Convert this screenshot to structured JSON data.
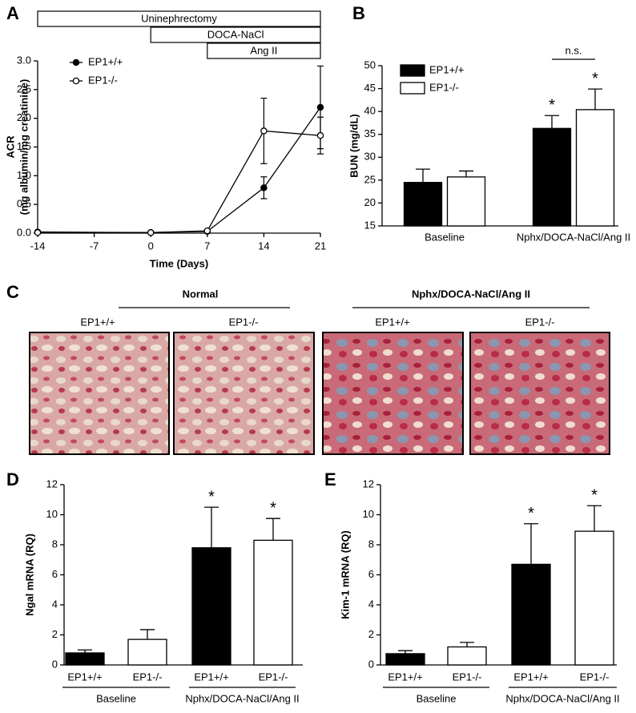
{
  "chart_data": [
    {
      "panel": "A",
      "type": "line",
      "x": [
        -14,
        0,
        7,
        14,
        21
      ],
      "series": [
        {
          "name": "EP1+/+",
          "color": "#000000",
          "marker": "filled",
          "values": [
            0.02,
            0.01,
            0.03,
            0.79,
            2.19
          ],
          "errors": [
            0.01,
            0.01,
            0.01,
            0.19,
            0.72
          ]
        },
        {
          "name": "EP1-/-",
          "color": "#000000",
          "marker": "open",
          "values": [
            0.01,
            0.01,
            0.04,
            1.78,
            1.7
          ],
          "errors": [
            0.01,
            0.01,
            0.01,
            0.57,
            0.32
          ]
        }
      ],
      "xlim": [
        -14,
        21
      ],
      "xticks": [
        -14,
        -7,
        0,
        7,
        14,
        21
      ],
      "ylim": [
        0,
        3
      ],
      "yticks": [
        {
          "value": 0,
          "label": "0.0"
        },
        {
          "value": 0.5,
          "label": "0.5"
        },
        {
          "value": 1,
          "label": "1.0"
        },
        {
          "value": 1.5,
          "label": "1.5"
        },
        {
          "value": 2,
          "label": "2.0"
        },
        {
          "value": 2.5,
          "label": "2.5"
        },
        {
          "value": 3,
          "label": "3.0"
        }
      ],
      "xlabel": "Time (Days)",
      "ylabel": [
        "ACR",
        "(mg albumin/mg creatinine)"
      ],
      "periods": [
        {
          "label": "Uninephrectomy",
          "start": -14,
          "end": 21
        },
        {
          "label": "DOCA-NaCl",
          "start": 0,
          "end": 21
        },
        {
          "label": "Ang II",
          "start": 7,
          "end": 21
        }
      ],
      "legend": "upper left"
    },
    {
      "panel": "B",
      "type": "bar",
      "categories": [
        "Baseline",
        "Nphx/DOCA-NaCl/Ang II"
      ],
      "series": [
        {
          "name": "EP1+/+",
          "color": "#000000",
          "values": [
            24.5,
            36.3
          ],
          "errors": [
            2.9,
            2.8
          ],
          "labels": [
            null,
            "*"
          ]
        },
        {
          "name": "EP1-/-",
          "color": "#ffffff",
          "values": [
            25.7,
            40.4
          ],
          "errors": [
            1.3,
            4.5
          ],
          "labels": [
            null,
            "*"
          ]
        }
      ],
      "ylim": [
        15,
        50
      ],
      "yticks": [
        15,
        20,
        25,
        30,
        35,
        40,
        45,
        50
      ],
      "ylabel": "BUN (mg/dL)",
      "bracket_label": "n.s.",
      "legend": "upper left"
    },
    {
      "panel": "D",
      "type": "bar",
      "categories": [
        "EP1+/+",
        "EP1-/-",
        "EP1+/+",
        "EP1-/-"
      ],
      "values": [
        0.8,
        1.7,
        7.8,
        8.3
      ],
      "errors": [
        0.2,
        0.65,
        2.7,
        1.45
      ],
      "labels": [
        null,
        null,
        "*",
        "*"
      ],
      "colors": [
        "#000000",
        "#ffffff",
        "#000000",
        "#ffffff"
      ],
      "groups": [
        "Baseline",
        "Nphx/DOCA-NaCl/Ang II"
      ],
      "ylim": [
        0,
        12
      ],
      "yticks": [
        0,
        2,
        4,
        6,
        8,
        10,
        12
      ],
      "ylabel": "Ngal mRNA (RQ)"
    },
    {
      "panel": "E",
      "type": "bar",
      "categories": [
        "EP1+/+",
        "EP1-/-",
        "EP1+/+",
        "EP1-/-"
      ],
      "values": [
        0.75,
        1.2,
        6.7,
        8.9
      ],
      "errors": [
        0.2,
        0.3,
        2.7,
        1.7
      ],
      "labels": [
        null,
        null,
        "*",
        "*"
      ],
      "colors": [
        "#000000",
        "#ffffff",
        "#000000",
        "#ffffff"
      ],
      "groups": [
        "Baseline",
        "Nphx/DOCA-NaCl/Ang II"
      ],
      "ylim": [
        0,
        12
      ],
      "yticks": [
        0,
        2,
        4,
        6,
        8,
        10,
        12
      ],
      "ylabel": "Kim-1 mRNA (RQ)"
    }
  ],
  "figure_c": {
    "panel": "C",
    "groups": [
      {
        "title": "Normal",
        "labels": [
          "EP1+/+",
          "EP1-/-"
        ]
      },
      {
        "title": "Nphx/DOCA-NaCl/Ang II",
        "labels": [
          "EP1+/+",
          "EP1-/-"
        ]
      }
    ]
  }
}
